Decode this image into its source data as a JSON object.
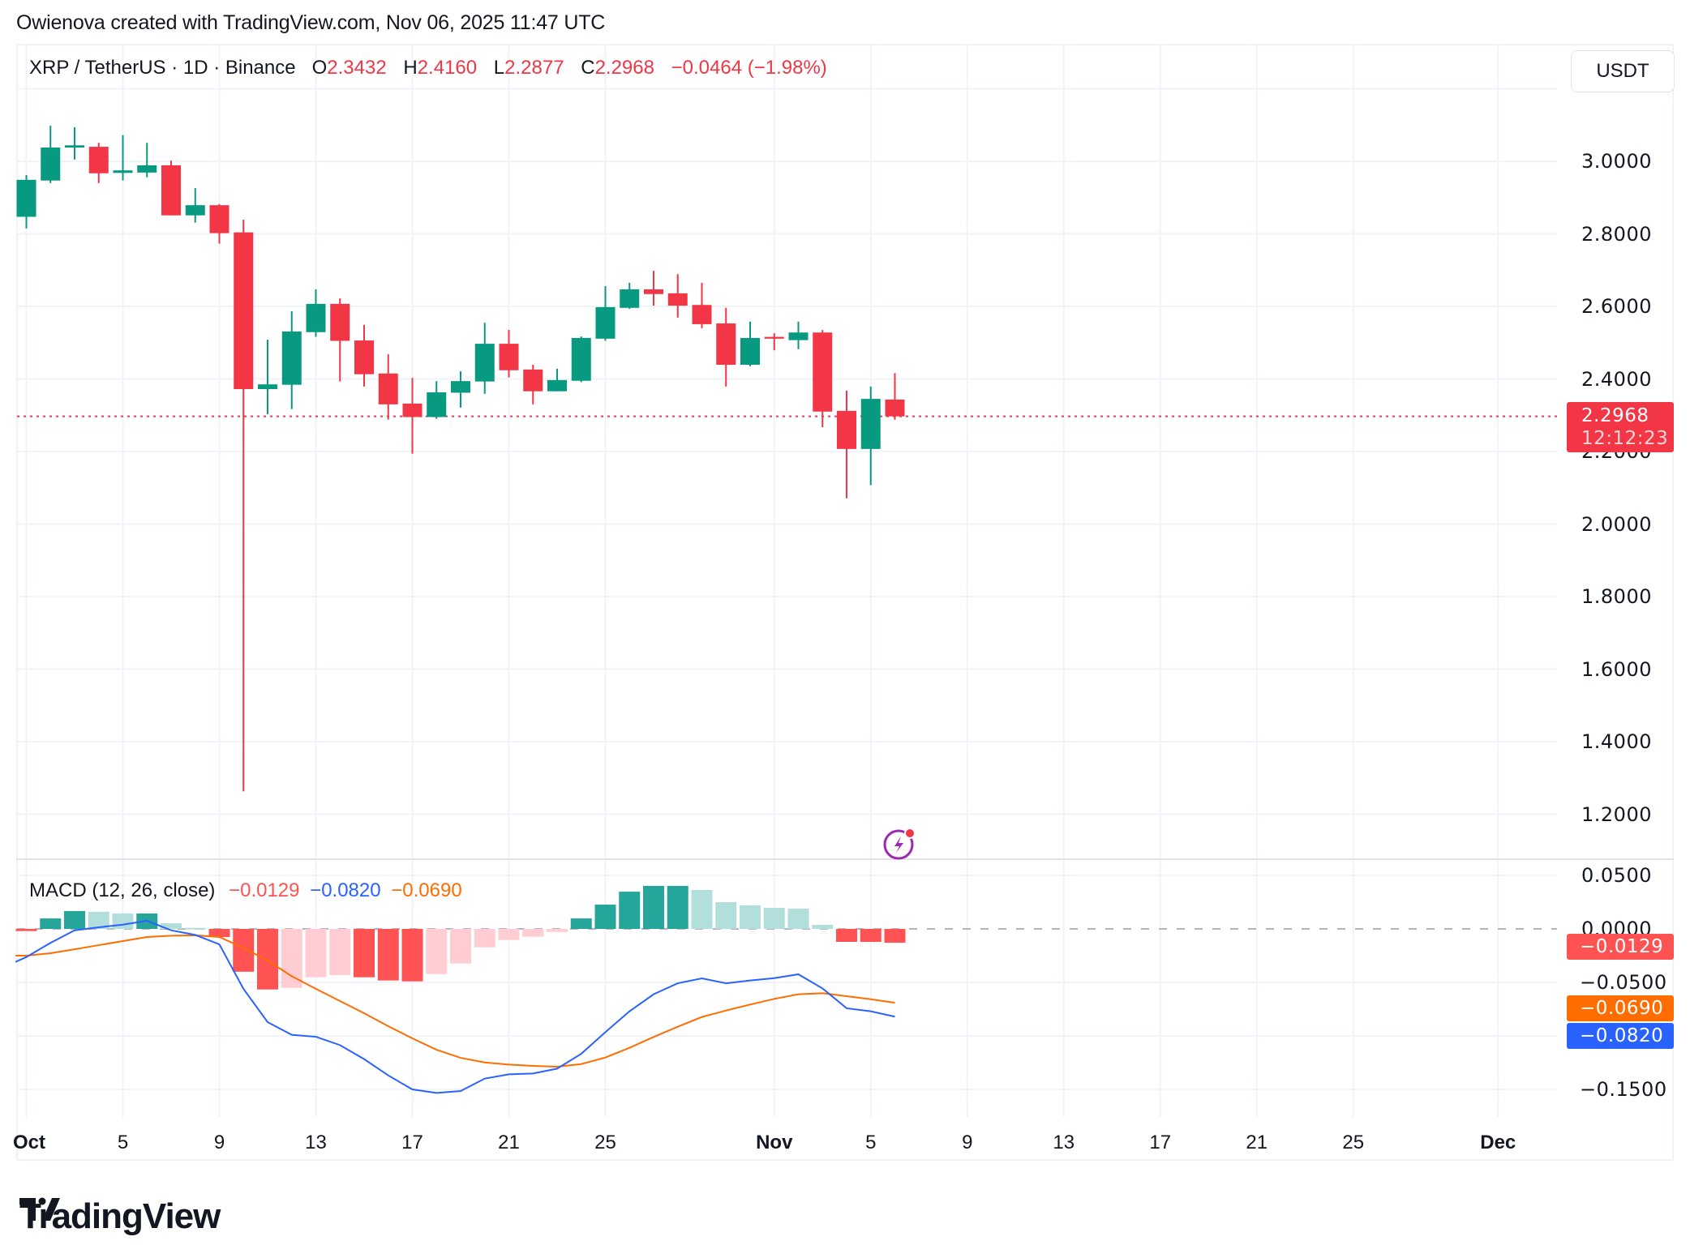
{
  "credit": "Owienova created with TradingView.com, Nov 06, 2025 11:47 UTC",
  "header": {
    "symbol": "XRP / TetherUS · 1D · Binance",
    "o_label": "O",
    "o_value": "2.3432",
    "h_label": "H",
    "h_value": "2.4160",
    "l_label": "L",
    "l_value": "2.2877",
    "c_label": "C",
    "c_value": "2.2968",
    "change": "−0.0464 (−1.98%)"
  },
  "currency_button": "USDT",
  "price_axis": {
    "labels": [
      "3.0000",
      "2.8000",
      "2.6000",
      "2.4000",
      "2.2000",
      "2.0000",
      "1.8000",
      "1.6000",
      "1.4000",
      "1.2000"
    ]
  },
  "last_price_tag": {
    "price": "2.2968",
    "countdown": "12:12:23",
    "color": "#f23645"
  },
  "macd": {
    "title": "MACD (12, 26, close)",
    "hist_value": "−0.0129",
    "macd_value": "−0.0820",
    "signal_value": "−0.0690",
    "axis_labels": [
      "0.0500",
      "0.0000",
      "−0.0500",
      "−0.1500"
    ],
    "tags": [
      {
        "text": "−0.0129",
        "color": "#ff5252"
      },
      {
        "text": "−0.0690",
        "color": "#ff6d00"
      },
      {
        "text": "−0.0820",
        "color": "#2962ff"
      }
    ]
  },
  "x_axis": {
    "labels": [
      {
        "text": "Oct",
        "day": 0,
        "bold": true
      },
      {
        "text": "5",
        "day": 4
      },
      {
        "text": "9",
        "day": 8
      },
      {
        "text": "13",
        "day": 12
      },
      {
        "text": "17",
        "day": 16
      },
      {
        "text": "21",
        "day": 20
      },
      {
        "text": "25",
        "day": 24
      },
      {
        "text": "Nov",
        "day": 31,
        "bold": true
      },
      {
        "text": "5",
        "day": 35
      },
      {
        "text": "9",
        "day": 39
      },
      {
        "text": "13",
        "day": 43
      },
      {
        "text": "17",
        "day": 47
      },
      {
        "text": "21",
        "day": 51
      },
      {
        "text": "25",
        "day": 55
      },
      {
        "text": "Dec",
        "day": 61,
        "bold": true
      }
    ]
  },
  "logo": {
    "text": "TradingView"
  },
  "colors": {
    "up": "#089981",
    "down": "#f23645",
    "macd": "#2962ff",
    "signal": "#ff6d00",
    "hist_up_strong": "#26a69a",
    "hist_up_weak": "#b2dfdb",
    "hist_down_strong": "#ff5252",
    "hist_down_weak": "#ffcdd2"
  },
  "chart_data": [
    {
      "type": "candlestick",
      "title": "XRP / TetherUS · 1D · Binance",
      "ylabel": "USDT",
      "ylim": [
        1.15,
        3.3
      ],
      "yticks": [
        1.2,
        1.4,
        1.6,
        1.8,
        2.0,
        2.2,
        2.4,
        2.6,
        2.8,
        3.0
      ],
      "grid": true,
      "last_price": 2.2968,
      "x": [
        "Oct 1",
        "Oct 2",
        "Oct 3",
        "Oct 4",
        "Oct 5",
        "Oct 6",
        "Oct 7",
        "Oct 8",
        "Oct 9",
        "Oct 10",
        "Oct 11",
        "Oct 12",
        "Oct 13",
        "Oct 14",
        "Oct 15",
        "Oct 16",
        "Oct 17",
        "Oct 18",
        "Oct 19",
        "Oct 20",
        "Oct 21",
        "Oct 22",
        "Oct 23",
        "Oct 24",
        "Oct 25",
        "Oct 26",
        "Oct 27",
        "Oct 28",
        "Oct 29",
        "Oct 30",
        "Oct 31",
        "Nov 1",
        "Nov 2",
        "Nov 3",
        "Nov 4",
        "Nov 5",
        "Nov 6"
      ],
      "open": [
        2.847,
        2.947,
        3.038,
        3.04,
        2.968,
        2.969,
        2.989,
        2.851,
        2.879,
        2.804,
        2.372,
        2.384,
        2.529,
        2.607,
        2.506,
        2.415,
        2.332,
        2.295,
        2.362,
        2.393,
        2.497,
        2.426,
        2.366,
        2.395,
        2.511,
        2.596,
        2.647,
        2.636,
        2.604,
        2.553,
        2.439,
        2.516,
        2.507,
        2.528,
        2.312,
        2.207,
        2.3432
      ],
      "high": [
        2.962,
        3.098,
        3.094,
        3.051,
        3.072,
        3.051,
        3.002,
        2.926,
        2.882,
        2.839,
        2.508,
        2.587,
        2.647,
        2.622,
        2.549,
        2.468,
        2.403,
        2.394,
        2.421,
        2.555,
        2.535,
        2.439,
        2.428,
        2.517,
        2.656,
        2.665,
        2.698,
        2.689,
        2.665,
        2.596,
        2.558,
        2.526,
        2.558,
        2.535,
        2.368,
        2.379,
        2.416
      ],
      "low": [
        2.815,
        2.94,
        3.005,
        2.94,
        2.947,
        2.956,
        2.851,
        2.831,
        2.773,
        1.263,
        2.303,
        2.317,
        2.516,
        2.393,
        2.379,
        2.288,
        2.194,
        2.29,
        2.321,
        2.359,
        2.404,
        2.33,
        2.366,
        2.391,
        2.505,
        2.593,
        2.602,
        2.569,
        2.54,
        2.379,
        2.435,
        2.479,
        2.482,
        2.267,
        2.071,
        2.107,
        2.2877
      ],
      "close": [
        2.949,
        3.038,
        3.044,
        2.967,
        2.975,
        2.989,
        2.851,
        2.879,
        2.802,
        2.372,
        2.385,
        2.531,
        2.607,
        2.505,
        2.413,
        2.33,
        2.295,
        2.363,
        2.394,
        2.497,
        2.424,
        2.366,
        2.397,
        2.513,
        2.598,
        2.647,
        2.634,
        2.602,
        2.551,
        2.439,
        2.513,
        2.511,
        2.528,
        2.31,
        2.207,
        2.345,
        2.2968
      ]
    },
    {
      "type": "bar+line",
      "title": "MACD (12, 26, close)",
      "ylim": [
        -0.175,
        0.06
      ],
      "yticks": [
        0.05,
        0.0,
        -0.05,
        -0.1,
        -0.15
      ],
      "x": [
        "Oct 1",
        "Oct 2",
        "Oct 3",
        "Oct 4",
        "Oct 5",
        "Oct 6",
        "Oct 7",
        "Oct 8",
        "Oct 9",
        "Oct 10",
        "Oct 11",
        "Oct 12",
        "Oct 13",
        "Oct 14",
        "Oct 15",
        "Oct 16",
        "Oct 17",
        "Oct 18",
        "Oct 19",
        "Oct 20",
        "Oct 21",
        "Oct 22",
        "Oct 23",
        "Oct 24",
        "Oct 25",
        "Oct 26",
        "Oct 27",
        "Oct 28",
        "Oct 29",
        "Oct 30",
        "Oct 31",
        "Nov 1",
        "Nov 2",
        "Nov 3",
        "Nov 4",
        "Nov 5",
        "Nov 6"
      ],
      "series": [
        {
          "name": "Histogram",
          "type": "bar",
          "values": [
            -0.002,
            0.0098,
            0.0167,
            0.016,
            0.0144,
            0.0144,
            0.0053,
            0.001,
            -0.0076,
            -0.04,
            -0.0566,
            -0.0551,
            -0.0452,
            -0.0432,
            -0.0452,
            -0.0482,
            -0.049,
            -0.0422,
            -0.0323,
            -0.0172,
            -0.0104,
            -0.0073,
            -0.0028,
            0.0098,
            0.0227,
            0.0348,
            0.0402,
            0.0402,
            0.0364,
            0.025,
            0.022,
            0.0197,
            0.019,
            0.0038,
            -0.0121,
            -0.0121,
            -0.0129
          ]
        },
        {
          "name": "MACD",
          "type": "line",
          "color": "#2962ff",
          "values": [
            -0.0263,
            -0.0131,
            -0.0013,
            0.0015,
            0.004,
            0.0076,
            -0.0013,
            -0.0056,
            -0.0144,
            -0.056,
            -0.0871,
            -0.099,
            -0.1008,
            -0.1086,
            -0.1217,
            -0.1369,
            -0.15,
            -0.1533,
            -0.1515,
            -0.1399,
            -0.1359,
            -0.1351,
            -0.1306,
            -0.1167,
            -0.0965,
            -0.077,
            -0.0611,
            -0.0508,
            -0.0462,
            -0.0508,
            -0.0482,
            -0.046,
            -0.0424,
            -0.0556,
            -0.0742,
            -0.077,
            -0.082
          ]
        },
        {
          "name": "Signal",
          "type": "line",
          "color": "#ff6d00",
          "values": [
            -0.025,
            -0.0227,
            -0.019,
            -0.0152,
            -0.0114,
            -0.0076,
            -0.0063,
            -0.006,
            -0.0076,
            -0.0177,
            -0.0295,
            -0.0442,
            -0.056,
            -0.0674,
            -0.0788,
            -0.0909,
            -0.1023,
            -0.1129,
            -0.1205,
            -0.1248,
            -0.1268,
            -0.128,
            -0.1288,
            -0.1263,
            -0.1202,
            -0.1111,
            -0.101,
            -0.0914,
            -0.0823,
            -0.0763,
            -0.0707,
            -0.0654,
            -0.0611,
            -0.0601,
            -0.0629,
            -0.0657,
            -0.069
          ]
        }
      ]
    }
  ]
}
